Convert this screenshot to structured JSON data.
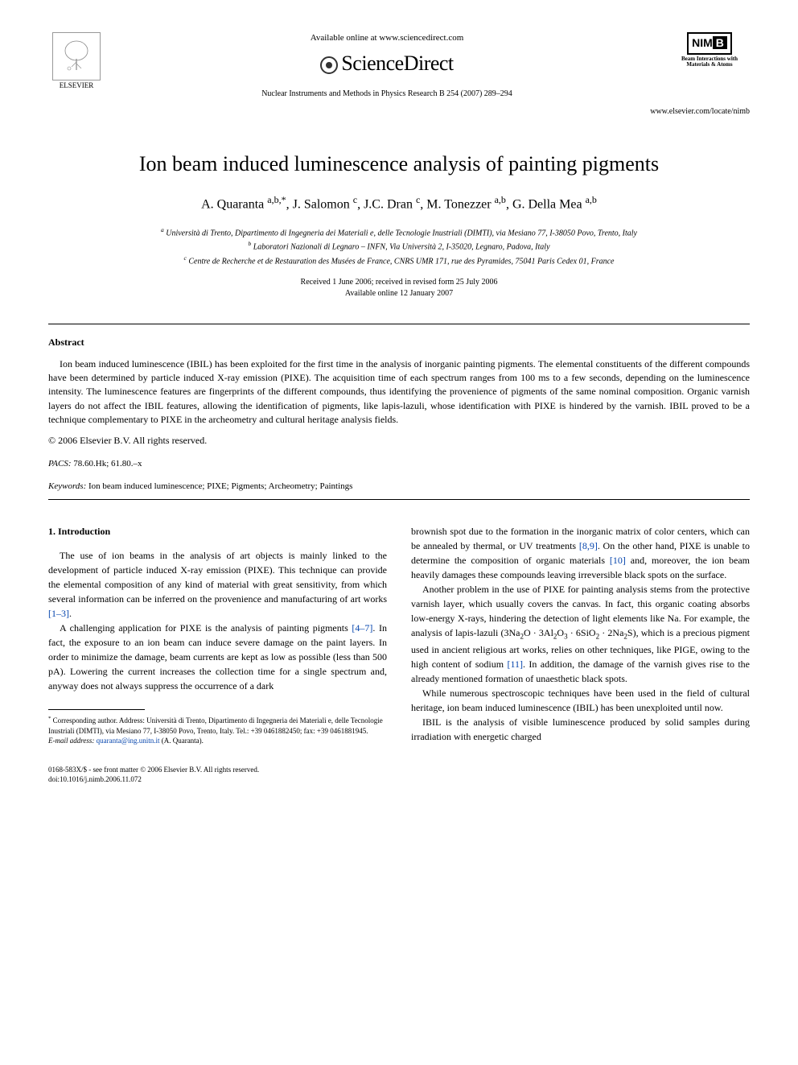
{
  "header": {
    "available_online": "Available online at www.sciencedirect.com",
    "brand": "ScienceDirect",
    "journal_ref": "Nuclear Instruments and Methods in Physics Research B 254 (2007) 289–294",
    "elsevier_label": "ELSEVIER",
    "nimb_letters": "NIM",
    "nimb_b": "B",
    "nimb_sub": "Beam Interactions with Materials & Atoms",
    "locate_url": "www.elsevier.com/locate/nimb"
  },
  "title": "Ion beam induced luminescence analysis of painting pigments",
  "authors_html": "A. Quaranta <sup>a,b,*</sup>, J. Salomon <sup>c</sup>, J.C. Dran <sup>c</sup>, M. Tonezzer <sup>a,b</sup>, G. Della Mea <sup>a,b</sup>",
  "affiliations": {
    "a": "Università di Trento, Dipartimento di Ingegneria dei Materiali e, delle Tecnologie Inustriali (DIMTI), via Mesiano 77, I-38050 Povo, Trento, Italy",
    "b": "Laboratori Nazionali di Legnaro – INFN, Via Università 2, I-35020, Legnaro, Padova, Italy",
    "c": "Centre de Recherche et de Restauration des Musées de France, CNRS UMR 171, rue des Pyramides, 75041 Paris Cedex 01, France"
  },
  "dates": {
    "received": "Received 1 June 2006; received in revised form 25 July 2006",
    "online": "Available online 12 January 2007"
  },
  "abstract": {
    "heading": "Abstract",
    "text": "Ion beam induced luminescence (IBIL) has been exploited for the first time in the analysis of inorganic painting pigments. The elemental constituents of the different compounds have been determined by particle induced X-ray emission (PIXE). The acquisition time of each spectrum ranges from 100 ms to a few seconds, depending on the luminescence intensity. The luminescence features are fingerprints of the different compounds, thus identifying the provenience of pigments of the same nominal composition. Organic varnish layers do not affect the IBIL features, allowing the identification of pigments, like lapis-lazuli, whose identification with PIXE is hindered by the varnish. IBIL proved to be a technique complementary to PIXE in the archeometry and cultural heritage analysis fields.",
    "copyright": "© 2006 Elsevier B.V. All rights reserved."
  },
  "pacs": {
    "label": "PACS:",
    "codes": "78.60.Hk; 61.80.–x"
  },
  "keywords": {
    "label": "Keywords:",
    "text": "Ion beam induced luminescence; PIXE; Pigments; Archeometry; Paintings"
  },
  "intro": {
    "heading": "1. Introduction",
    "p1_a": "The use of ion beams in the analysis of art objects is mainly linked to the development of particle induced X-ray emission (PIXE). This technique can provide the elemental composition of any kind of material with great sensitivity, from which several information can be inferred on the provenience and manufacturing of art works ",
    "p1_ref": "[1–3]",
    "p1_b": ".",
    "p2_a": "A challenging application for PIXE is the analysis of painting pigments ",
    "p2_ref": "[4–7]",
    "p2_b": ". In fact, the exposure to an ion beam can induce severe damage on the paint layers. In order to minimize the damage, beam currents are kept as low as possible (less than 500 pA). Lowering the current increases the collection time for a single spectrum and, anyway does not always suppress the occurrence of a dark",
    "p3_a": "brownish spot due to the formation in the inorganic matrix of color centers, which can be annealed by thermal, or UV treatments ",
    "p3_ref1": "[8,9]",
    "p3_b": ". On the other hand, PIXE is unable to determine the composition of organic materials ",
    "p3_ref2": "[10]",
    "p3_c": " and, moreover, the ion beam heavily damages these compounds leaving irreversible black spots on the surface.",
    "p4_a": "Another problem in the use of PIXE for painting analysis stems from the protective varnish layer, which usually covers the canvas. In fact, this organic coating absorbs low-energy X-rays, hindering the detection of light elements like Na. For example, the analysis of lapis-lazuli (3Na",
    "p4_b": "O · 3Al",
    "p4_c": "O",
    "p4_d": " · 6SiO",
    "p4_e": " · 2Na",
    "p4_f": "S), which is a precious pigment used in ancient religious art works, relies on other techniques, like PIGE, owing to the high content of sodium ",
    "p4_ref": "[11]",
    "p4_g": ". In addition, the damage of the varnish gives rise to the already mentioned formation of unaesthetic black spots.",
    "p5": "While numerous spectroscopic techniques have been used in the field of cultural heritage, ion beam induced luminescence (IBIL) has been unexploited until now.",
    "p6": "IBIL is the analysis of visible luminescence produced by solid samples during irradiation with energetic charged"
  },
  "footnote": {
    "corr": "Corresponding author. Address: Università di Trento, Dipartimento di Ingegneria dei Materiali e, delle Tecnologie Inustriali (DIMTI), via Mesiano 77, I-38050 Povo, Trento, Italy. Tel.: +39 0461882450; fax: +39 0461881945.",
    "email_label": "E-mail address:",
    "email": "quaranta@ing.unitn.it",
    "email_suffix": "(A. Quaranta)."
  },
  "footer": {
    "issn": "0168-583X/$ - see front matter © 2006 Elsevier B.V. All rights reserved.",
    "doi": "doi:10.1016/j.nimb.2006.11.072"
  }
}
